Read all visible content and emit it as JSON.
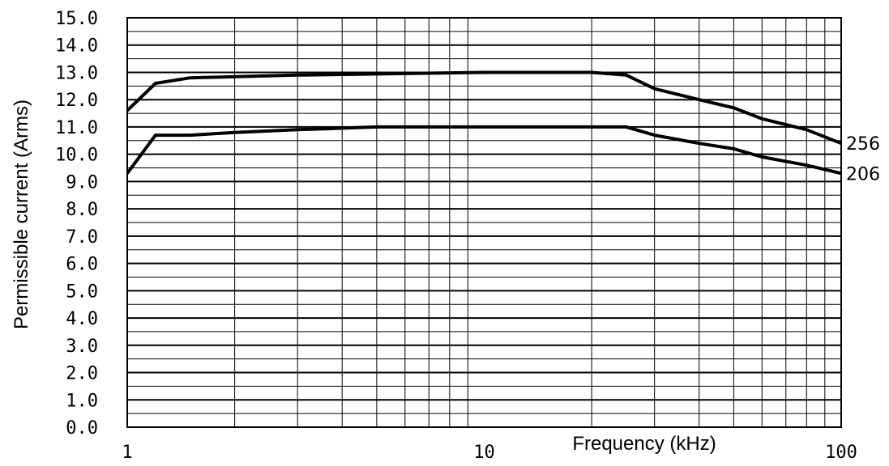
{
  "chart_data": {
    "type": "line",
    "xlabel": "Frequency  (kHz)",
    "ylabel": "Permissible current (Arms)",
    "x_scale": "log",
    "xlim": [
      1,
      100
    ],
    "ylim": [
      0,
      15
    ],
    "x_tick_labels": [
      "1",
      "10",
      "100"
    ],
    "x_ticks": [
      1,
      10,
      100
    ],
    "y_tick_labels": [
      "0.0",
      "1.0",
      "2.0",
      "3.0",
      "4.0",
      "5.0",
      "6.0",
      "7.0",
      "8.0",
      "9.0",
      "10.0",
      "11.0",
      "12.0",
      "13.0",
      "14.0",
      "15.0"
    ],
    "y_ticks": [
      0,
      1,
      2,
      3,
      4,
      5,
      6,
      7,
      8,
      9,
      10,
      11,
      12,
      13,
      14,
      15
    ],
    "grid": true,
    "series": [
      {
        "name": "256",
        "x": [
          1,
          1.2,
          1.5,
          3,
          10,
          20,
          25,
          30,
          40,
          50,
          60,
          80,
          100
        ],
        "y": [
          11.6,
          12.6,
          12.8,
          12.9,
          13.0,
          13.0,
          12.9,
          12.4,
          12.0,
          11.7,
          11.3,
          10.9,
          10.4
        ]
      },
      {
        "name": "206",
        "x": [
          1,
          1.2,
          1.5,
          2,
          3,
          5,
          10,
          20,
          25,
          30,
          40,
          50,
          60,
          80,
          100
        ],
        "y": [
          9.3,
          10.7,
          10.7,
          10.8,
          10.9,
          11.0,
          11.0,
          11.0,
          11.0,
          10.7,
          10.4,
          10.2,
          9.9,
          9.6,
          9.3
        ]
      }
    ]
  }
}
